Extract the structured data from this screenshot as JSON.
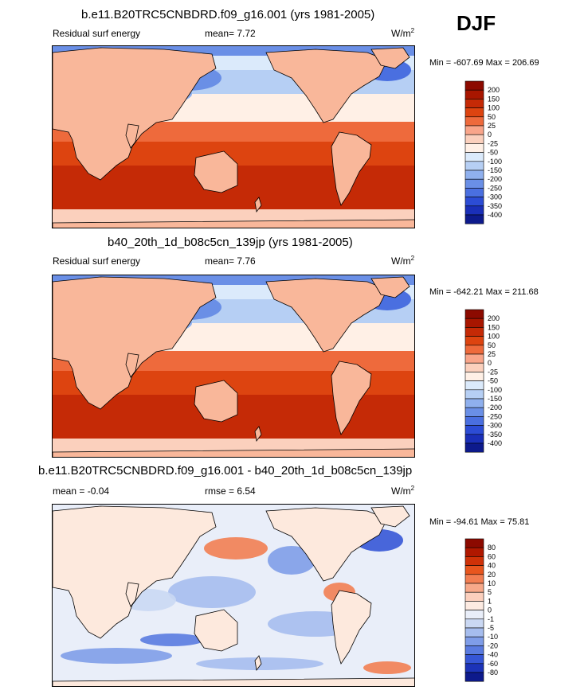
{
  "header": {
    "season": "DJF"
  },
  "panels": [
    {
      "title": "b.e11.B20TRC5CNBDRD.f09_g16.001 (yrs 1981-2005)",
      "left_label": "Residual surf energy",
      "stat_text": "mean=   7.72",
      "units_text": "W/m",
      "units_sup": "2",
      "minmax": "Min = -607.69 Max = 206.69"
    },
    {
      "title": "b40_20th_1d_b08c5cn_139jp (yrs 1981-2005)",
      "left_label": "Residual surf energy",
      "stat_text": "mean=   7.76",
      "units_text": "W/m",
      "units_sup": "2",
      "minmax": "Min = -642.21 Max = 211.68"
    },
    {
      "title": "b.e11.B20TRC5CNBDRD.f09_g16.001 - b40_20th_1d_b08c5cn_139jp",
      "left_label": "mean =  -0.04",
      "stat_text": "rmse =   6.54",
      "units_text": "W/m",
      "units_sup": "2",
      "minmax": "Min = -94.61 Max = 75.81"
    }
  ],
  "chart_data": [
    {
      "type": "heatmap",
      "title": "b.e11.B20TRC5CNBDRD.f09_g16.001 (yrs 1981-2005)",
      "variable": "Residual surf energy",
      "units": "W/m2",
      "mean": 7.72,
      "min": -607.69,
      "max": 206.69,
      "colorbar_levels": [
        "200",
        "150",
        "100",
        "50",
        "25",
        "0",
        "-25",
        "-50",
        "-100",
        "-150",
        "-200",
        "-250",
        "-300",
        "-350",
        "-400"
      ],
      "colorbar_colors": [
        "#8c0a00",
        "#a81600",
        "#c52a06",
        "#dd4410",
        "#ee6a3c",
        "#f9a58a",
        "#fbd0bd",
        "#fff0e6",
        "#dbeafb",
        "#b6cff4",
        "#8fb0ee",
        "#6a8fe6",
        "#4a6fe0",
        "#2c4cd5",
        "#1a2fb8",
        "#0d1a8c"
      ]
    },
    {
      "type": "heatmap",
      "title": "b40_20th_1d_b08c5cn_139jp (yrs 1981-2005)",
      "variable": "Residual surf energy",
      "units": "W/m2",
      "mean": 7.76,
      "min": -642.21,
      "max": 211.68,
      "colorbar_levels": [
        "200",
        "150",
        "100",
        "50",
        "25",
        "0",
        "-25",
        "-50",
        "-100",
        "-150",
        "-200",
        "-250",
        "-300",
        "-350",
        "-400"
      ],
      "colorbar_colors": [
        "#8c0a00",
        "#a81600",
        "#c52a06",
        "#dd4410",
        "#ee6a3c",
        "#f9a58a",
        "#fbd0bd",
        "#fff0e6",
        "#dbeafb",
        "#b6cff4",
        "#8fb0ee",
        "#6a8fe6",
        "#4a6fe0",
        "#2c4cd5",
        "#1a2fb8",
        "#0d1a8c"
      ]
    },
    {
      "type": "heatmap",
      "title": "b.e11.B20TRC5CNBDRD.f09_g16.001 - b40_20th_1d_b08c5cn_139jp",
      "units": "W/m2",
      "mean": -0.04,
      "rmse": 6.54,
      "min": -94.61,
      "max": 75.81,
      "colorbar_levels": [
        "80",
        "60",
        "40",
        "20",
        "10",
        "5",
        "1",
        "0",
        "-1",
        "-5",
        "-10",
        "-20",
        "-40",
        "-60",
        "-80"
      ],
      "colorbar_colors": [
        "#8c0a00",
        "#b01800",
        "#cf3208",
        "#e8561e",
        "#f27e52",
        "#f7a98a",
        "#fbcfbd",
        "#fdebe2",
        "#e9eef9",
        "#cad8f3",
        "#a6bdee",
        "#7f9de8",
        "#5a7be0",
        "#3656d6",
        "#1c33b8",
        "#0d1a8c"
      ]
    }
  ]
}
